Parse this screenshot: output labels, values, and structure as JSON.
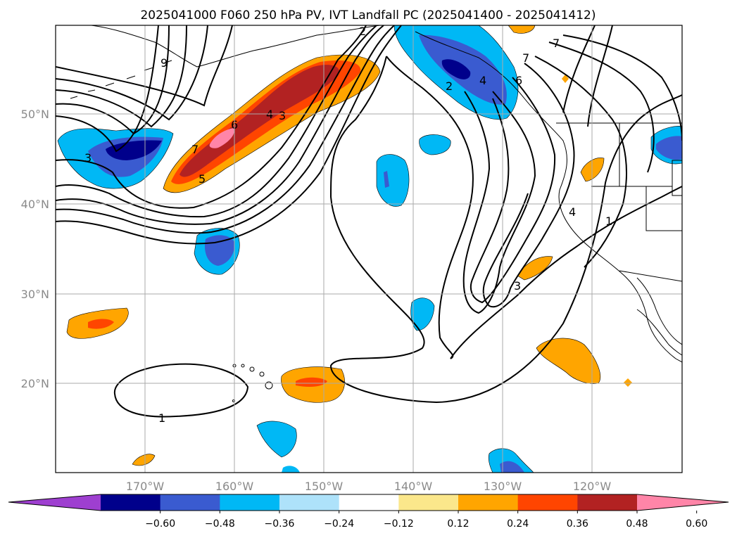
{
  "title": "2025041000 F060 250 hPa PV, IVT Landfall PC (2025041400 - 2025041412)",
  "lat_labels": [
    "50°N",
    "40°N",
    "30°N",
    "20°N"
  ],
  "lon_labels": [
    "170°W",
    "160°W",
    "150°W",
    "140°W",
    "130°W",
    "120°W"
  ],
  "colorbar": {
    "colors": [
      "#9e3fd0",
      "#00008b",
      "#3a5bd0",
      "#00b8f5",
      "#aee2fa",
      "#ffffff",
      "#fbe78b",
      "#ffa500",
      "#ff4500",
      "#b22222",
      "#ff85a8"
    ],
    "tick_labels": [
      "−0.60",
      "−0.48",
      "−0.36",
      "−0.24",
      "−0.12",
      "0.12",
      "0.24",
      "0.36",
      "0.48",
      "0.60"
    ]
  },
  "contour_labels": [
    "2",
    "7",
    "6",
    "9",
    "3",
    "7",
    "6",
    "5",
    "4",
    "3",
    "2",
    "4",
    "7",
    "1",
    "4",
    "3",
    "1"
  ],
  "chart_data": {
    "type": "heatmap",
    "title": "2025041000 F060 250 hPa PV, IVT Landfall PC (2025041400 - 2025041412)",
    "lon_range": [
      -180,
      -110
    ],
    "lat_range": [
      10,
      60
    ],
    "shaded_field_levels": [
      -0.6,
      -0.48,
      -0.36,
      -0.24,
      -0.12,
      0.12,
      0.24,
      0.36,
      0.48,
      0.6
    ],
    "contour_levels_labeled": [
      1,
      2,
      3,
      4,
      5,
      6,
      7,
      9
    ]
  }
}
